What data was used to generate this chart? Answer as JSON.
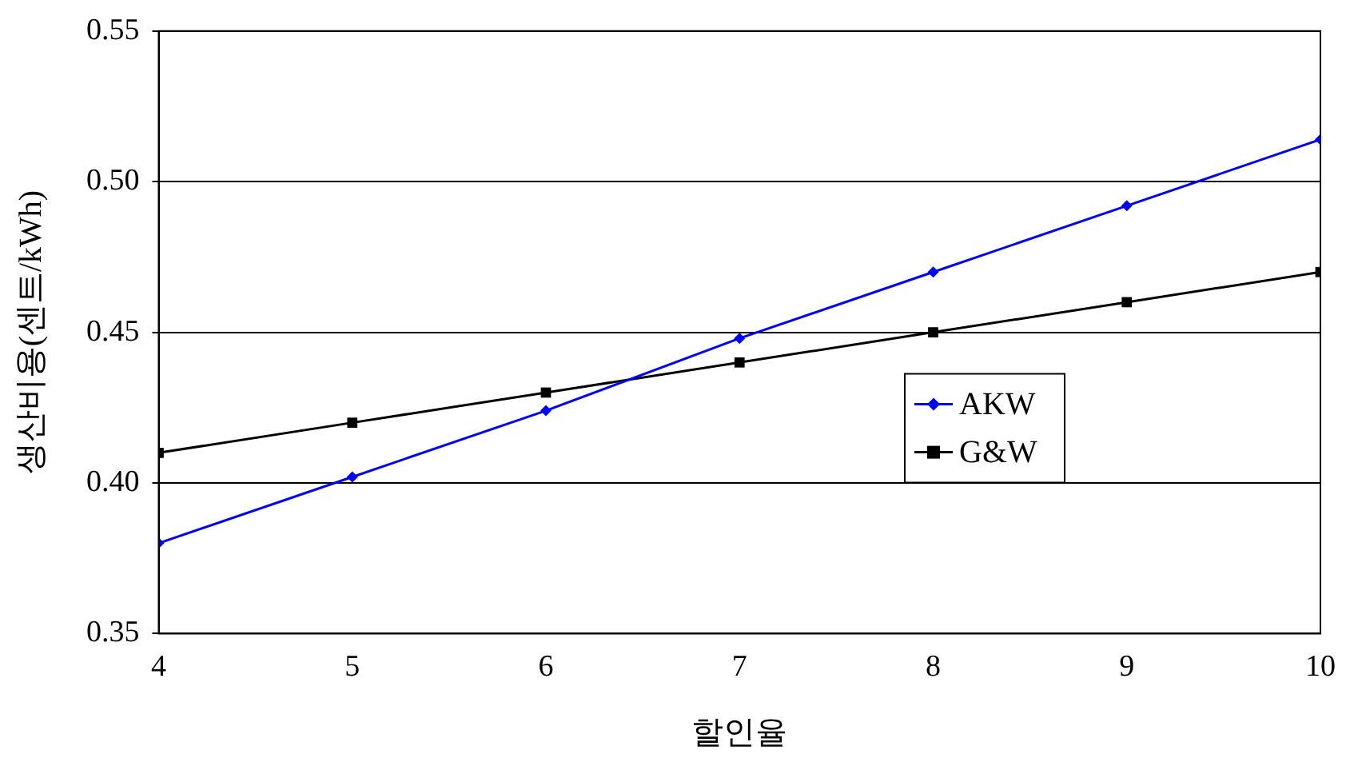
{
  "chart_data": {
    "type": "line",
    "xlabel": "할인율",
    "ylabel": "생산비용(센트/kWh)",
    "x": [
      4,
      5,
      6,
      7,
      8,
      9,
      10
    ],
    "series": [
      {
        "name": "AKW",
        "color": "#0000ff",
        "marker": "diamond",
        "values": [
          0.38,
          0.402,
          0.424,
          0.448,
          0.47,
          0.492,
          0.514
        ]
      },
      {
        "name": "G&W",
        "color": "#000000",
        "marker": "square",
        "values": [
          0.41,
          0.42,
          0.43,
          0.44,
          0.45,
          0.46,
          0.47
        ]
      }
    ],
    "xlim": [
      4,
      10
    ],
    "xticks": [
      4,
      5,
      6,
      7,
      8,
      9,
      10
    ],
    "ylim": [
      0.35,
      0.55
    ],
    "yticks": [
      {
        "value": 0.35,
        "label": "0.35"
      },
      {
        "value": 0.4,
        "label": "0.40"
      },
      {
        "value": 0.45,
        "label": "0.45"
      },
      {
        "value": 0.5,
        "label": "0.50"
      },
      {
        "value": 0.55,
        "label": "0.55"
      }
    ],
    "grid": "y",
    "legend": "right"
  }
}
